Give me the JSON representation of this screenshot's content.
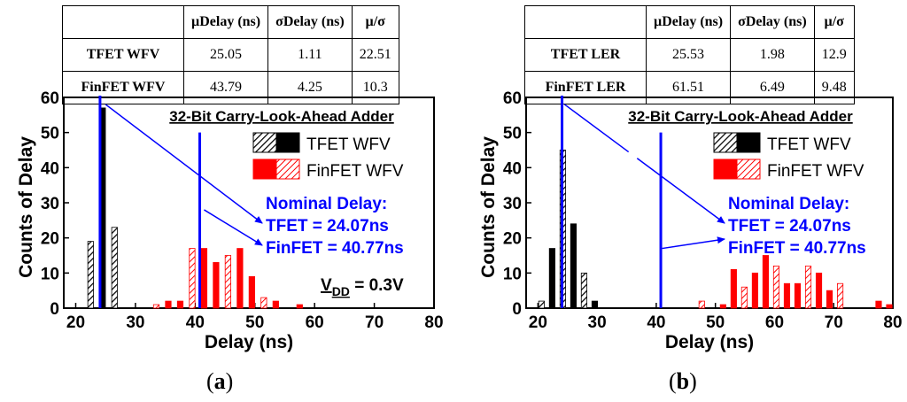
{
  "tables": [
    {
      "headers": [
        "",
        "µDelay (ns)",
        "σDelay (ns)",
        "µ/σ"
      ],
      "rows": [
        {
          "label": "TFET WFV",
          "mu": "25.05",
          "sigma": "1.11",
          "ratio": "22.51"
        },
        {
          "label": "FinFET WFV",
          "mu": "43.79",
          "sigma": "4.25",
          "ratio": "10.3"
        }
      ]
    },
    {
      "headers": [
        "",
        "µDelay (ns)",
        "σDelay (ns)",
        "µ/σ"
      ],
      "rows": [
        {
          "label": "TFET LER",
          "mu": "25.53",
          "sigma": "1.98",
          "ratio": "12.9"
        },
        {
          "label": "FinFET LER",
          "mu": "61.51",
          "sigma": "6.49",
          "ratio": "9.48"
        }
      ]
    }
  ],
  "panel_labels": [
    {
      "open": "(",
      "letter": "a",
      "close": ")"
    },
    {
      "open": "(",
      "letter": "b",
      "close": ")"
    }
  ],
  "colors": {
    "tfet": "#000000",
    "finfet": "#ff0000",
    "nominal": "#0000ff",
    "annotation": "#0000ff"
  },
  "chart_data": [
    {
      "type": "bar",
      "title": "32-Bit Carry-Look-Ahead Adder",
      "xlabel": "Delay (ns)",
      "ylabel": "Counts of Delay",
      "xlim": [
        18,
        80
      ],
      "ylim": [
        0,
        60
      ],
      "xticks": [
        20,
        30,
        40,
        50,
        60,
        70,
        80
      ],
      "yticks": [
        0,
        10,
        20,
        30,
        40,
        50,
        60
      ],
      "legend": [
        "TFET WFV",
        "FinFET WFV"
      ],
      "legend_position": "top-right",
      "series": [
        {
          "name": "TFET WFV",
          "x": [
            22.5,
            24.5,
            26.5
          ],
          "values": [
            19,
            57,
            23
          ]
        },
        {
          "name": "FinFET WFV",
          "x": [
            33.5,
            35.5,
            37.5,
            39.5,
            41.5,
            43.5,
            45.5,
            47.5,
            49.5,
            51.5,
            53.5,
            57.5
          ],
          "values": [
            1,
            2,
            2,
            17,
            17,
            13,
            15,
            17,
            9,
            3,
            2,
            1
          ]
        }
      ],
      "nominal_lines": [
        24.07,
        40.77
      ],
      "annotation_title": "Nominal Delay:",
      "annotations": [
        "TFET = 24.07ns",
        "FinFET = 40.77ns"
      ],
      "vdd_label": {
        "main": "V",
        "sub": "DD",
        "rest": " = 0.3V"
      }
    },
    {
      "type": "bar",
      "title": "32-Bit Carry-Look-Ahead Adder",
      "xlabel": "Delay (ns)",
      "ylabel": "Counts of Delay",
      "xlim": [
        18,
        80
      ],
      "ylim": [
        0,
        60
      ],
      "xticks": [
        20,
        30,
        40,
        50,
        60,
        70,
        80
      ],
      "yticks": [
        0,
        10,
        20,
        30,
        40,
        50,
        60
      ],
      "legend": [
        "TFET WFV",
        "FinFET WFV"
      ],
      "legend_position": "top-right",
      "series": [
        {
          "name": "TFET",
          "x": [
            20.6,
            22.4,
            24.2,
            26.0,
            27.8,
            29.6
          ],
          "values": [
            2,
            17,
            45,
            24,
            10,
            2
          ]
        },
        {
          "name": "FinFET",
          "x": [
            47.7,
            51.3,
            53.1,
            54.9,
            56.7,
            58.5,
            60.3,
            62.1,
            63.9,
            65.7,
            67.5,
            69.3,
            71.1,
            77.6,
            79.4
          ],
          "values": [
            2,
            1,
            11,
            6,
            10,
            15,
            12,
            7,
            7,
            12,
            10,
            5,
            7,
            2,
            1
          ]
        }
      ],
      "nominal_lines": [
        24.07,
        40.77
      ],
      "annotation_title": "Nominal Delay:",
      "annotations": [
        "TFET = 24.07ns",
        "FinFET = 40.77ns"
      ]
    }
  ]
}
